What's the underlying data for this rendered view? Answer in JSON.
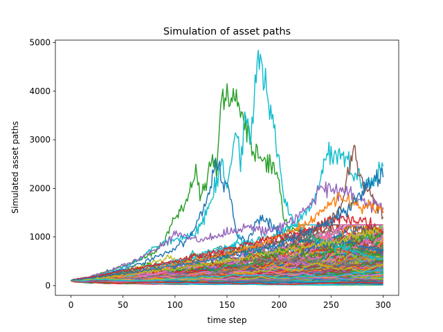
{
  "chart_data": {
    "type": "line",
    "title": "Simulation of asset paths",
    "xlabel": "time step",
    "ylabel": "Simulated asset paths",
    "xlim": [
      -15,
      315
    ],
    "ylim": [
      -200,
      5050
    ],
    "xticks": [
      0,
      50,
      100,
      150,
      200,
      250,
      300
    ],
    "yticks": [
      0,
      1000,
      2000,
      3000,
      4000,
      5000
    ],
    "grid": false,
    "legend": "none",
    "n_steps": 300,
    "start_value": 100,
    "palette": [
      "#1f77b4",
      "#ff7f0e",
      "#2ca02c",
      "#d62728",
      "#9467bd",
      "#8c564b",
      "#e377c2",
      "#7f7f7f",
      "#bcbd22",
      "#17becf"
    ],
    "highlighted_series": [
      {
        "color": "#2ca02c",
        "points": [
          [
            0,
            100
          ],
          [
            20,
            180
          ],
          [
            40,
            330
          ],
          [
            60,
            470
          ],
          [
            80,
            700
          ],
          [
            90,
            930
          ],
          [
            100,
            1400
          ],
          [
            110,
            1700
          ],
          [
            115,
            1950
          ],
          [
            120,
            2300
          ],
          [
            125,
            1850
          ],
          [
            130,
            2250
          ],
          [
            135,
            2600
          ],
          [
            140,
            2450
          ],
          [
            145,
            3900
          ],
          [
            150,
            3800
          ],
          [
            155,
            3950
          ],
          [
            160,
            3800
          ],
          [
            165,
            3500
          ],
          [
            170,
            3200
          ],
          [
            175,
            2800
          ],
          [
            180,
            2700
          ],
          [
            185,
            2450
          ],
          [
            190,
            2550
          ],
          [
            195,
            2350
          ],
          [
            200,
            2150
          ],
          [
            205,
            1350
          ],
          [
            210,
            1250
          ],
          [
            220,
            1150
          ],
          [
            240,
            900
          ],
          [
            260,
            800
          ],
          [
            280,
            700
          ],
          [
            300,
            600
          ]
        ]
      },
      {
        "color": "#17becf",
        "points": [
          [
            0,
            100
          ],
          [
            20,
            160
          ],
          [
            40,
            290
          ],
          [
            60,
            460
          ],
          [
            80,
            780
          ],
          [
            100,
            950
          ],
          [
            110,
            1000
          ],
          [
            120,
            1100
          ],
          [
            130,
            1500
          ],
          [
            140,
            2200
          ],
          [
            145,
            2650
          ],
          [
            150,
            2000
          ],
          [
            155,
            2700
          ],
          [
            160,
            3300
          ],
          [
            163,
            2350
          ],
          [
            167,
            3600
          ],
          [
            172,
            3000
          ],
          [
            176,
            3700
          ],
          [
            179,
            4800
          ],
          [
            182,
            4600
          ],
          [
            185,
            4300
          ],
          [
            190,
            3700
          ],
          [
            195,
            3200
          ],
          [
            200,
            2500
          ],
          [
            205,
            1800
          ],
          [
            210,
            1500
          ],
          [
            215,
            1300
          ],
          [
            225,
            1100
          ],
          [
            240,
            900
          ],
          [
            260,
            800
          ],
          [
            280,
            650
          ],
          [
            300,
            550
          ]
        ]
      },
      {
        "color": "#17becf",
        "points": [
          [
            0,
            100
          ],
          [
            40,
            250
          ],
          [
            80,
            420
          ],
          [
            120,
            600
          ],
          [
            160,
            850
          ],
          [
            200,
            1050
          ],
          [
            220,
            1350
          ],
          [
            235,
            1800
          ],
          [
            245,
            2600
          ],
          [
            250,
            2750
          ],
          [
            255,
            2700
          ],
          [
            260,
            2800
          ],
          [
            265,
            2550
          ],
          [
            270,
            2200
          ],
          [
            275,
            2350
          ],
          [
            280,
            2100
          ],
          [
            290,
            2150
          ],
          [
            300,
            2450
          ]
        ]
      },
      {
        "color": "#1f77b4",
        "points": [
          [
            0,
            100
          ],
          [
            30,
            220
          ],
          [
            60,
            400
          ],
          [
            90,
            650
          ],
          [
            110,
            900
          ],
          [
            120,
            1250
          ],
          [
            130,
            1700
          ],
          [
            137,
            2350
          ],
          [
            142,
            2550
          ],
          [
            147,
            2000
          ],
          [
            150,
            2350
          ],
          [
            155,
            1600
          ],
          [
            160,
            1000
          ],
          [
            170,
            900
          ],
          [
            180,
            1400
          ],
          [
            190,
            1300
          ],
          [
            200,
            1100
          ],
          [
            220,
            950
          ],
          [
            240,
            850
          ],
          [
            260,
            900
          ],
          [
            280,
            800
          ],
          [
            300,
            750
          ]
        ]
      },
      {
        "color": "#8c564b",
        "points": [
          [
            0,
            100
          ],
          [
            40,
            240
          ],
          [
            80,
            400
          ],
          [
            120,
            550
          ],
          [
            160,
            700
          ],
          [
            200,
            900
          ],
          [
            230,
            1100
          ],
          [
            250,
            1350
          ],
          [
            262,
            1800
          ],
          [
            270,
            2800
          ],
          [
            275,
            2500
          ],
          [
            280,
            2100
          ],
          [
            290,
            1800
          ],
          [
            300,
            1500
          ]
        ]
      },
      {
        "color": "#9467bd",
        "points": [
          [
            0,
            100
          ],
          [
            30,
            250
          ],
          [
            60,
            500
          ],
          [
            90,
            850
          ],
          [
            100,
            1100
          ],
          [
            110,
            1000
          ],
          [
            130,
            950
          ],
          [
            150,
            1100
          ],
          [
            170,
            1200
          ],
          [
            190,
            1100
          ],
          [
            210,
            1300
          ],
          [
            230,
            1600
          ],
          [
            240,
            2050
          ],
          [
            250,
            1950
          ],
          [
            270,
            1900
          ],
          [
            290,
            1700
          ],
          [
            300,
            1600
          ]
        ]
      },
      {
        "color": "#ff7f0e",
        "points": [
          [
            0,
            100
          ],
          [
            40,
            200
          ],
          [
            80,
            350
          ],
          [
            120,
            500
          ],
          [
            160,
            700
          ],
          [
            200,
            1000
          ],
          [
            230,
            1300
          ],
          [
            250,
            1700
          ],
          [
            260,
            1900
          ],
          [
            275,
            1600
          ],
          [
            290,
            1650
          ],
          [
            300,
            1550
          ]
        ]
      },
      {
        "color": "#d62728",
        "points": [
          [
            0,
            100
          ],
          [
            30,
            220
          ],
          [
            60,
            350
          ],
          [
            100,
            500
          ],
          [
            140,
            700
          ],
          [
            180,
            900
          ],
          [
            220,
            1100
          ],
          [
            260,
            1400
          ],
          [
            300,
            1150
          ]
        ]
      },
      {
        "color": "#bcbd22",
        "points": [
          [
            0,
            100
          ],
          [
            40,
            180
          ],
          [
            80,
            300
          ],
          [
            120,
            400
          ],
          [
            160,
            550
          ],
          [
            200,
            700
          ],
          [
            240,
            850
          ],
          [
            280,
            1050
          ],
          [
            300,
            1200
          ]
        ]
      },
      {
        "color": "#1f77b4",
        "points": [
          [
            0,
            100
          ],
          [
            50,
            250
          ],
          [
            100,
            400
          ],
          [
            150,
            600
          ],
          [
            200,
            850
          ],
          [
            240,
            1250
          ],
          [
            260,
            1500
          ],
          [
            280,
            1900
          ],
          [
            300,
            2350
          ]
        ]
      }
    ],
    "bulk_series_count": 520,
    "bulk_drift": 0.0045,
    "bulk_volatility": 0.045
  }
}
